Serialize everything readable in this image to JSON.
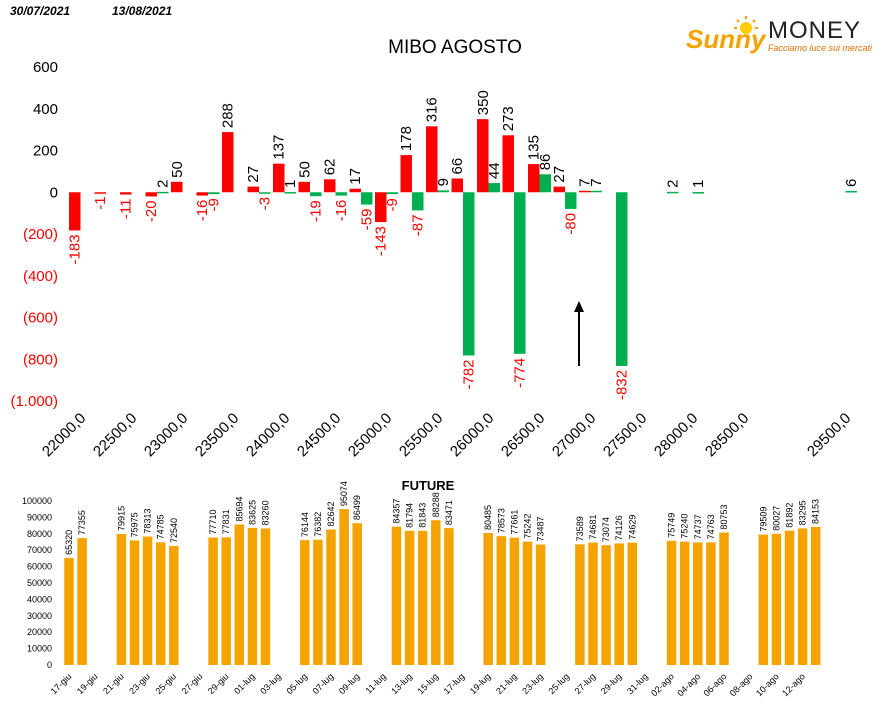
{
  "header": {
    "date_start": "30/07/2021",
    "date_end": "13/08/2021"
  },
  "logo": {
    "brand_sunny": "Sunny",
    "brand_money": "MONEY",
    "tagline": "Facciamo luce sui mercati",
    "color_sunny": "#f5a300",
    "color_money": "#222222",
    "color_tagline": "#e07000"
  },
  "colors": {
    "red": "#ff0000",
    "green": "#00b050",
    "negative_label": "#ff0000",
    "orange": "#f5a300"
  },
  "chart_data": [
    {
      "type": "bar",
      "title": "MIBO AGOSTO",
      "xlabel": "",
      "ylabel": "",
      "ylim": [
        -1000,
        600
      ],
      "y_ticks": [
        600,
        400,
        200,
        0,
        -200,
        -400,
        -600,
        -800,
        -1000
      ],
      "y_tick_labels": [
        "600",
        "400",
        "200",
        "0",
        "(200)",
        "(400)",
        "(600)",
        "(800)",
        "(1.000)"
      ],
      "x_axis_labels": [
        "22000,0",
        "22500,0",
        "23000,0",
        "23500,0",
        "24000,0",
        "24500,0",
        "25000,0",
        "25500,0",
        "26000,0",
        "26500,0",
        "27000,0",
        "27500,0",
        "28000,0",
        "28500,0",
        "29500,0"
      ],
      "categories": [
        "22000",
        "22250",
        "22500",
        "22750",
        "23000",
        "23250",
        "23500",
        "23750",
        "24000",
        "24250",
        "24500",
        "24750",
        "25000",
        "25250",
        "25500",
        "25750",
        "26000",
        "26250",
        "26500",
        "26750",
        "27000",
        "27250",
        "27500",
        "27750",
        "28000",
        "28250",
        "28500",
        "28750",
        "29000",
        "29250",
        "29500"
      ],
      "series": [
        {
          "color_key": "red",
          "values": [
            -183,
            -1,
            -11,
            -20,
            50,
            -16,
            288,
            27,
            137,
            50,
            62,
            17,
            -143,
            178,
            316,
            66,
            350,
            273,
            135,
            27,
            7,
            null,
            null,
            null,
            null,
            null,
            null,
            null,
            null,
            null,
            null
          ]
        },
        {
          "color_key": "green",
          "values": [
            null,
            null,
            null,
            2,
            null,
            -9,
            null,
            -3,
            1,
            -19,
            -16,
            -59,
            -9,
            -87,
            9,
            -782,
            44,
            -774,
            86,
            -80,
            7,
            -832,
            null,
            2,
            1,
            null,
            null,
            null,
            null,
            null,
            6
          ]
        }
      ],
      "grid": false,
      "legend": "none",
      "annotations": [
        "arrow"
      ]
    },
    {
      "type": "bar",
      "title": "FUTURE",
      "ylim": [
        0,
        100000
      ],
      "y_ticks": [
        0,
        10000,
        20000,
        30000,
        40000,
        50000,
        60000,
        70000,
        80000,
        90000,
        100000
      ],
      "categories": [
        "17-giu",
        "18-giu",
        "19-giu",
        "20-giu",
        "21-giu",
        "22-giu",
        "23-giu",
        "24-giu",
        "25-giu",
        "26-giu",
        "27-giu",
        "28-giu",
        "29-giu",
        "30-giu",
        "01-lug",
        "02-lug",
        "03-lug",
        "04-lug",
        "05-lug",
        "06-lug",
        "07-lug",
        "08-lug",
        "09-lug",
        "10-lug",
        "11-lug",
        "12-lug",
        "13-lug",
        "14-lug",
        "15-lug",
        "16-lug",
        "17-lug",
        "18-lug",
        "19-lug",
        "20-lug",
        "21-lug",
        "22-lug",
        "23-lug",
        "24-lug",
        "25-lug",
        "26-lug",
        "27-lug",
        "28-lug",
        "29-lug",
        "30-lug",
        "31-lug",
        "01-ago",
        "02-ago",
        "03-ago",
        "04-ago",
        "05-ago",
        "06-ago",
        "07-ago",
        "08-ago",
        "09-ago",
        "10-ago",
        "11-ago",
        "12-ago",
        "13-ago"
      ],
      "x_tick_labels": [
        "17-giu",
        "19-giu",
        "21-giu",
        "23-giu",
        "25-giu",
        "27-giu",
        "29-giu",
        "01-lug",
        "03-lug",
        "05-lug",
        "07-lug",
        "09-lug",
        "11-lug",
        "13-lug",
        "15-lug",
        "17-lug",
        "19-lug",
        "21-lug",
        "23-lug",
        "25-lug",
        "27-lug",
        "29-lug",
        "31-lug",
        "02-ago",
        "04-ago",
        "06-ago",
        "08-ago",
        "10-ago",
        "12-ago"
      ],
      "values": [
        65320,
        77355,
        null,
        null,
        79915,
        75975,
        78313,
        74785,
        72540,
        null,
        null,
        77710,
        77831,
        85694,
        83625,
        83260,
        null,
        null,
        76144,
        76382,
        82642,
        95074,
        86499,
        null,
        null,
        84357,
        81794,
        81843,
        88288,
        83471,
        null,
        null,
        80485,
        78573,
        77661,
        75242,
        73487,
        null,
        null,
        73589,
        74681,
        73074,
        74126,
        74629,
        null,
        null,
        75749,
        75240,
        74737,
        74763,
        80753,
        null,
        null,
        79509,
        80027,
        81892,
        83295,
        84153
      ],
      "color_key": "orange",
      "grid": false,
      "legend": "none"
    }
  ]
}
